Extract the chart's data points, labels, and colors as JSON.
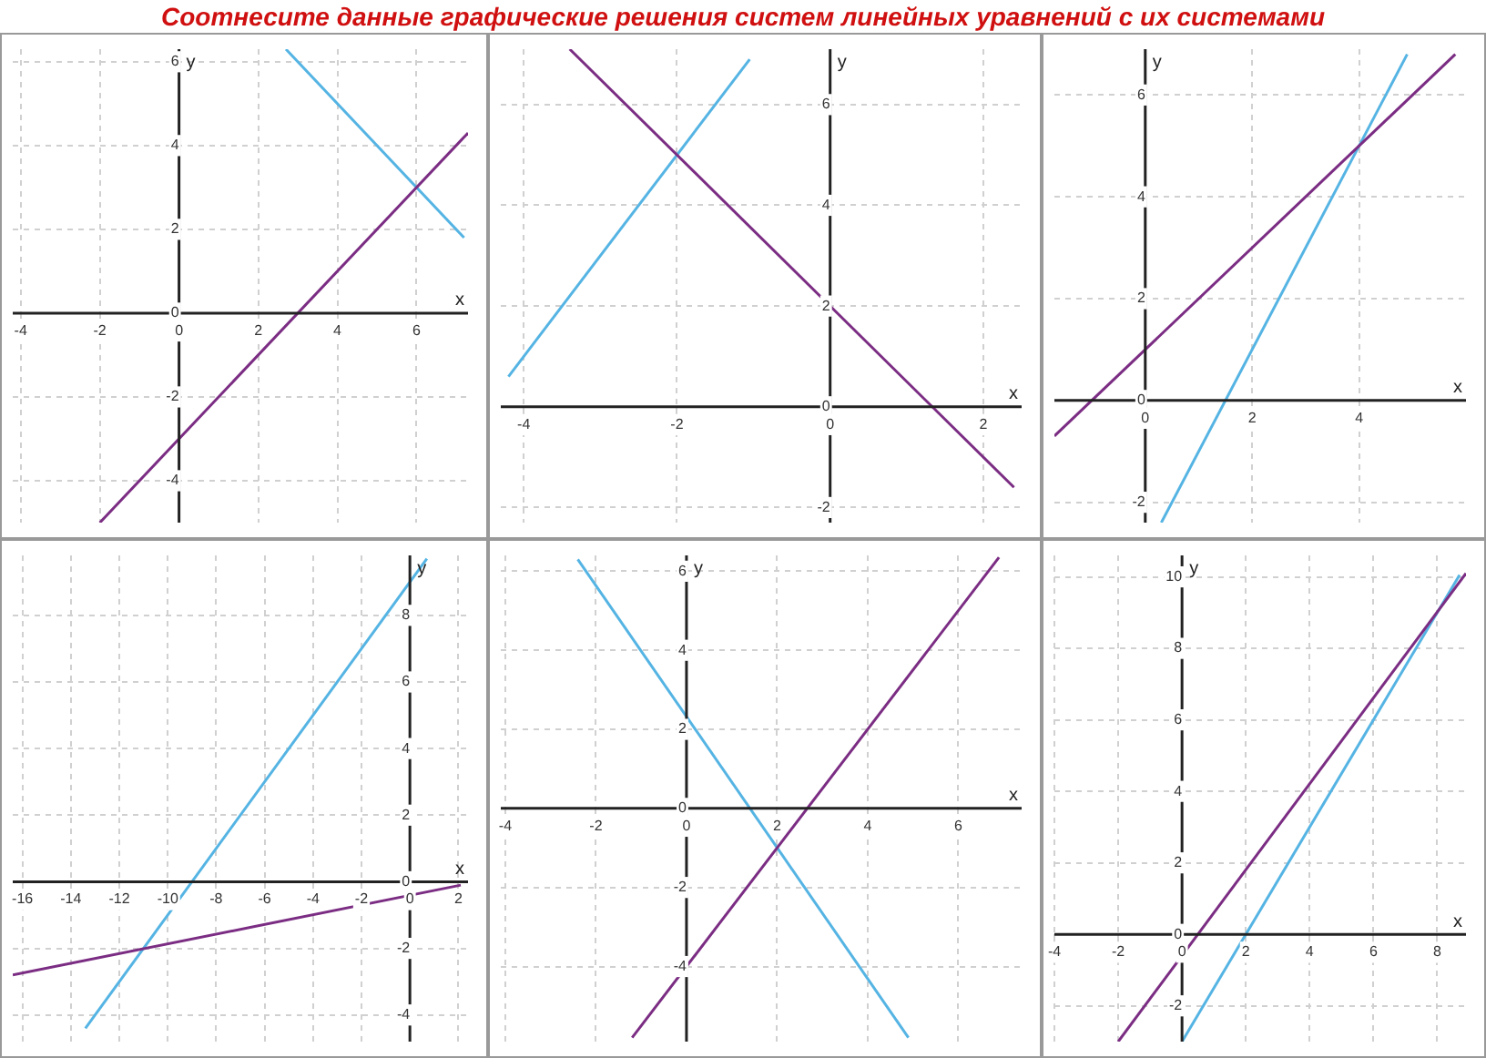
{
  "chart_data": [
    {
      "type": "line",
      "title": "Соотнесите данные графические решения систем линейных уравнений с их системами",
      "xlabel": "x",
      "ylabel": "y",
      "xlim": [
        -4.2,
        7.3
      ],
      "ylim": [
        -5,
        6.3
      ],
      "xticks": [
        -4,
        -2,
        0,
        2,
        4,
        6
      ],
      "yticks": [
        -4,
        -2,
        0,
        2,
        4,
        6
      ],
      "grid": true,
      "legend": false,
      "marker": "none",
      "series": [
        {
          "color": "#7b2d83",
          "x": [
            -2,
            7.3
          ],
          "values": [
            -5,
            4.3
          ]
        },
        {
          "color": "#55b4e3",
          "x": [
            2.7,
            7.2
          ],
          "values": [
            6.3,
            1.8
          ]
        }
      ]
    },
    {
      "type": "line",
      "xlabel": "x",
      "ylabel": "y",
      "xlim": [
        -4.3,
        2.5
      ],
      "ylim": [
        -2.3,
        7.1
      ],
      "xticks": [
        -4,
        -2,
        0,
        2
      ],
      "yticks": [
        -2,
        0,
        2,
        4,
        6
      ],
      "grid": true,
      "legend": false,
      "marker": "none",
      "series": [
        {
          "color": "#7b2d83",
          "x": [
            -3.4,
            2.4
          ],
          "values": [
            7.1,
            -1.6
          ]
        },
        {
          "color": "#55b4e3",
          "x": [
            -4.2,
            -1.05
          ],
          "values": [
            0.6,
            6.9
          ]
        }
      ]
    },
    {
      "type": "line",
      "xlabel": "x",
      "ylabel": "y",
      "xlim": [
        -1.7,
        6
      ],
      "ylim": [
        -2.4,
        6.9
      ],
      "xticks": [
        0,
        2,
        4
      ],
      "yticks": [
        -2,
        0,
        2,
        4,
        6
      ],
      "grid": true,
      "legend": false,
      "marker": "none",
      "series": [
        {
          "color": "#7b2d83",
          "x": [
            -1.7,
            5.8
          ],
          "values": [
            -0.7,
            6.8
          ]
        },
        {
          "color": "#55b4e3",
          "x": [
            0.3,
            4.9
          ],
          "values": [
            -2.4,
            6.8
          ]
        }
      ]
    },
    {
      "type": "line",
      "xlabel": "x",
      "ylabel": "y",
      "xlim": [
        -16.4,
        2.4
      ],
      "ylim": [
        -4.8,
        9.8
      ],
      "xticks": [
        -16,
        -14,
        -12,
        -10,
        -8,
        -6,
        -4,
        -2,
        0,
        2
      ],
      "yticks": [
        -4,
        -2,
        0,
        2,
        4,
        6,
        8
      ],
      "grid": true,
      "legend": false,
      "marker": "none",
      "series": [
        {
          "color": "#7b2d83",
          "x": [
            -16.4,
            2.1
          ],
          "values": [
            -2.8,
            -0.1
          ]
        },
        {
          "color": "#55b4e3",
          "x": [
            -13.4,
            0.7
          ],
          "values": [
            -4.4,
            9.7
          ]
        }
      ]
    },
    {
      "type": "line",
      "xlabel": "x",
      "ylabel": "y",
      "xlim": [
        -4.1,
        7.4
      ],
      "ylim": [
        -5.9,
        6.4
      ],
      "xticks": [
        -4,
        -2,
        0,
        2,
        4,
        6
      ],
      "yticks": [
        -4,
        -2,
        0,
        2,
        4,
        6
      ],
      "grid": true,
      "legend": false,
      "marker": "none",
      "series": [
        {
          "color": "#7b2d83",
          "x": [
            -1.2,
            6.9
          ],
          "values": [
            -5.8,
            6.35
          ]
        },
        {
          "color": "#55b4e3",
          "x": [
            -2.4,
            4.9
          ],
          "values": [
            6.3,
            -5.8
          ]
        }
      ]
    },
    {
      "type": "line",
      "xlabel": "x",
      "ylabel": "y",
      "xlim": [
        -4,
        8.9
      ],
      "ylim": [
        -3,
        10.6
      ],
      "xticks": [
        -4,
        -2,
        0,
        2,
        4,
        6,
        8
      ],
      "yticks": [
        -2,
        0,
        2,
        4,
        6,
        8,
        10
      ],
      "grid": true,
      "legend": false,
      "marker": "none",
      "series": [
        {
          "color": "#7b2d83",
          "x": [
            -2,
            8.9
          ],
          "values": [
            -3,
            10.1
          ]
        },
        {
          "color": "#55b4e3",
          "x": [
            0,
            8.7
          ],
          "values": [
            -3,
            10.05
          ]
        }
      ]
    }
  ]
}
